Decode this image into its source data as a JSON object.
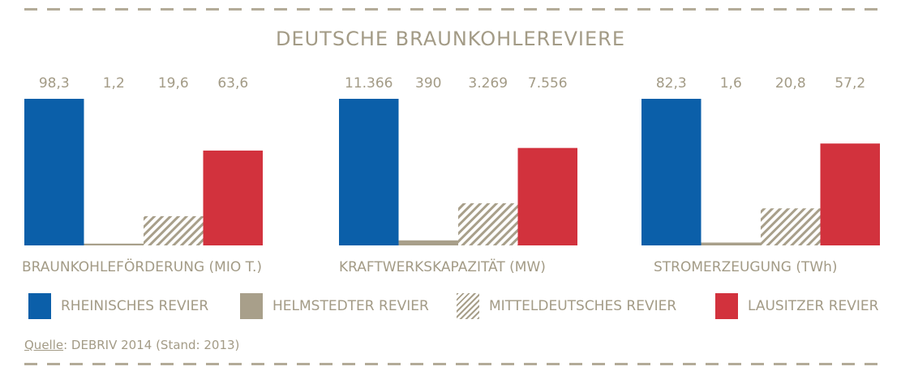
{
  "chart_data": {
    "type": "bar",
    "title": "DEUTSCHE BRAUNKOHLEREVIERE",
    "groups": [
      {
        "label": "BRAUNKOHLEFÖRDERUNG (MIO T.)",
        "values": [
          98.3,
          1.2,
          19.6,
          63.6
        ],
        "value_labels": [
          "98,3",
          "1,2",
          "19,6",
          "63,6"
        ]
      },
      {
        "label": "KRAFTWERKSKAPAZITÄT (MW)",
        "values": [
          11366,
          390,
          3269,
          7556
        ],
        "value_labels": [
          "11.366",
          "390",
          "3.269",
          "7.556"
        ]
      },
      {
        "label": "STROMERZEUGUNG (TWh)",
        "values": [
          82.3,
          1.6,
          20.8,
          57.2
        ],
        "value_labels": [
          "82,3",
          "1,6",
          "20,8",
          "57,2"
        ]
      }
    ],
    "series": [
      {
        "name": "RHEINISCHES REVIER",
        "color": "#0b5fa9",
        "pattern": "solid"
      },
      {
        "name": "HELMSTEDTER REVIER",
        "color": "#a89f8a",
        "pattern": "solid"
      },
      {
        "name": "MITTELDEUTSCHES REVIER",
        "color": "#a89f8a",
        "pattern": "hatch"
      },
      {
        "name": "LAUSITZER REVIER",
        "color": "#d2323d",
        "pattern": "solid"
      }
    ],
    "legend": "bottom"
  },
  "source": {
    "label": "Quelle",
    "text": ": DEBRIV 2014 (Stand: 2013)"
  }
}
